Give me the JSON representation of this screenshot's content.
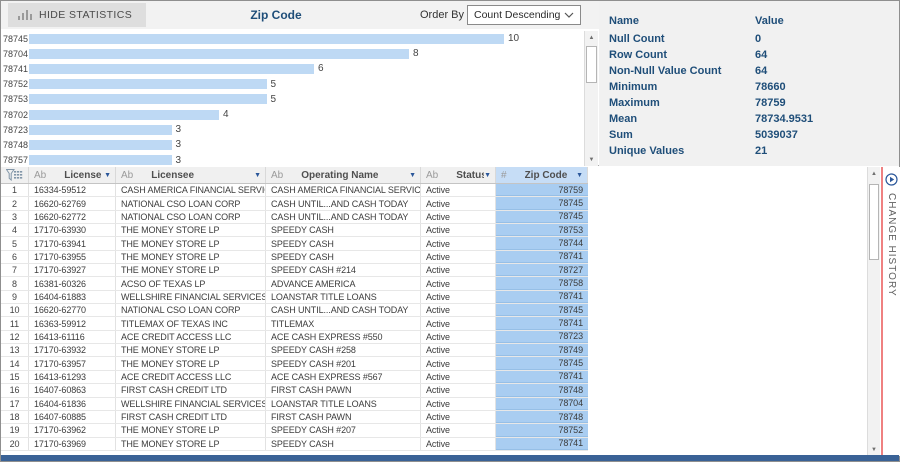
{
  "toolbar": {
    "hide_statistics_label": "HIDE STATISTICS",
    "title": "Zip Code",
    "order_by_label": "Order By",
    "order_by_value": "Count Descending"
  },
  "chart_data": {
    "type": "bar",
    "orientation": "horizontal",
    "title": "Zip Code",
    "order_by": "Count Descending",
    "categories": [
      "78745",
      "78704",
      "78741",
      "78752",
      "78753",
      "78702",
      "78723",
      "78748",
      "78757"
    ],
    "values": [
      10,
      8,
      6,
      5,
      5,
      4,
      3,
      3,
      3
    ],
    "xlim": [
      0,
      10
    ],
    "bar_color": "#bed9f4",
    "legend": "none",
    "grid": false
  },
  "statistics": {
    "name_header": "Name",
    "value_header": "Value",
    "rows": [
      {
        "name": "Null Count",
        "value": "0"
      },
      {
        "name": "Row Count",
        "value": "64"
      },
      {
        "name": "Non-Null Value Count",
        "value": "64"
      },
      {
        "name": "Minimum",
        "value": "78660"
      },
      {
        "name": "Maximum",
        "value": "78759"
      },
      {
        "name": "Mean",
        "value": "78734.9531"
      },
      {
        "name": "Sum",
        "value": "5039037"
      },
      {
        "name": "Unique Values",
        "value": "21"
      }
    ]
  },
  "table": {
    "columns": [
      {
        "type": "Ab",
        "label": "License #"
      },
      {
        "type": "Ab",
        "label": "Licensee"
      },
      {
        "type": "Ab",
        "label": "Operating Name"
      },
      {
        "type": "Ab",
        "label": "Status"
      },
      {
        "type": "#",
        "label": "Zip Code"
      }
    ],
    "rows": [
      {
        "n": "1",
        "license": "16334-59512",
        "licensee": "CASH AMERICA FINANCIAL SERVICES INC",
        "operating": "CASH AMERICA FINANCIAL SERVICES INC",
        "status": "Active",
        "zip": "78759"
      },
      {
        "n": "2",
        "license": "16620-62769",
        "licensee": "NATIONAL CSO LOAN CORP",
        "operating": "CASH UNTIL...AND CASH TODAY",
        "status": "Active",
        "zip": "78745"
      },
      {
        "n": "3",
        "license": "16620-62772",
        "licensee": "NATIONAL CSO LOAN CORP",
        "operating": "CASH UNTIL...AND CASH TODAY",
        "status": "Active",
        "zip": "78745"
      },
      {
        "n": "4",
        "license": "17170-63930",
        "licensee": "THE MONEY STORE LP",
        "operating": "SPEEDY CASH",
        "status": "Active",
        "zip": "78753"
      },
      {
        "n": "5",
        "license": "17170-63941",
        "licensee": "THE MONEY STORE LP",
        "operating": "SPEEDY CASH",
        "status": "Active",
        "zip": "78744"
      },
      {
        "n": "6",
        "license": "17170-63955",
        "licensee": "THE MONEY STORE LP",
        "operating": "SPEEDY CASH",
        "status": "Active",
        "zip": "78741"
      },
      {
        "n": "7",
        "license": "17170-63927",
        "licensee": "THE MONEY STORE LP",
        "operating": "SPEEDY CASH #214",
        "status": "Active",
        "zip": "78727"
      },
      {
        "n": "8",
        "license": "16381-60326",
        "licensee": "ACSO OF TEXAS LP",
        "operating": "ADVANCE AMERICA",
        "status": "Active",
        "zip": "78758"
      },
      {
        "n": "9",
        "license": "16404-61883",
        "licensee": "WELLSHIRE FINANCIAL SERVICES LLC",
        "operating": "LOANSTAR TITLE LOANS",
        "status": "Active",
        "zip": "78741"
      },
      {
        "n": "10",
        "license": "16620-62770",
        "licensee": "NATIONAL CSO LOAN CORP",
        "operating": "CASH UNTIL...AND CASH TODAY",
        "status": "Active",
        "zip": "78745"
      },
      {
        "n": "11",
        "license": "16363-59912",
        "licensee": "TITLEMAX OF TEXAS INC",
        "operating": "TITLEMAX",
        "status": "Active",
        "zip": "78741"
      },
      {
        "n": "12",
        "license": "16413-61116",
        "licensee": "ACE CREDIT ACCESS LLC",
        "operating": "ACE CASH EXPRESS #550",
        "status": "Active",
        "zip": "78723"
      },
      {
        "n": "13",
        "license": "17170-63932",
        "licensee": "THE MONEY STORE LP",
        "operating": "SPEEDY CASH #258",
        "status": "Active",
        "zip": "78749"
      },
      {
        "n": "14",
        "license": "17170-63957",
        "licensee": "THE MONEY STORE LP",
        "operating": "SPEEDY CASH #201",
        "status": "Active",
        "zip": "78745"
      },
      {
        "n": "15",
        "license": "16413-61293",
        "licensee": "ACE CREDIT ACCESS LLC",
        "operating": "ACE CASH EXPRESS #567",
        "status": "Active",
        "zip": "78741"
      },
      {
        "n": "16",
        "license": "16407-60863",
        "licensee": "FIRST CASH CREDIT LTD",
        "operating": "FIRST CASH PAWN",
        "status": "Active",
        "zip": "78748"
      },
      {
        "n": "17",
        "license": "16404-61836",
        "licensee": "WELLSHIRE FINANCIAL SERVICES LLC",
        "operating": "LOANSTAR TITLE LOANS",
        "status": "Active",
        "zip": "78704"
      },
      {
        "n": "18",
        "license": "16407-60885",
        "licensee": "FIRST CASH CREDIT LTD",
        "operating": "FIRST CASH PAWN",
        "status": "Active",
        "zip": "78748"
      },
      {
        "n": "19",
        "license": "17170-63962",
        "licensee": "THE MONEY STORE LP",
        "operating": "SPEEDY CASH #207",
        "status": "Active",
        "zip": "78752"
      },
      {
        "n": "20",
        "license": "17170-63969",
        "licensee": "THE MONEY STORE LP",
        "operating": "SPEEDY CASH",
        "status": "Active",
        "zip": "78741"
      }
    ]
  },
  "side_panel": {
    "change_history_label": "CHANGE HISTORY"
  },
  "colors": {
    "accent_navy": "#1f4e79",
    "bar_blue": "#bed9f4",
    "zip_column_blue": "#a9cdf1",
    "zip_header_blue": "#c6ddf6",
    "history_divider_red": "#ef8181",
    "bottom_strip_blue": "#3a6296"
  }
}
